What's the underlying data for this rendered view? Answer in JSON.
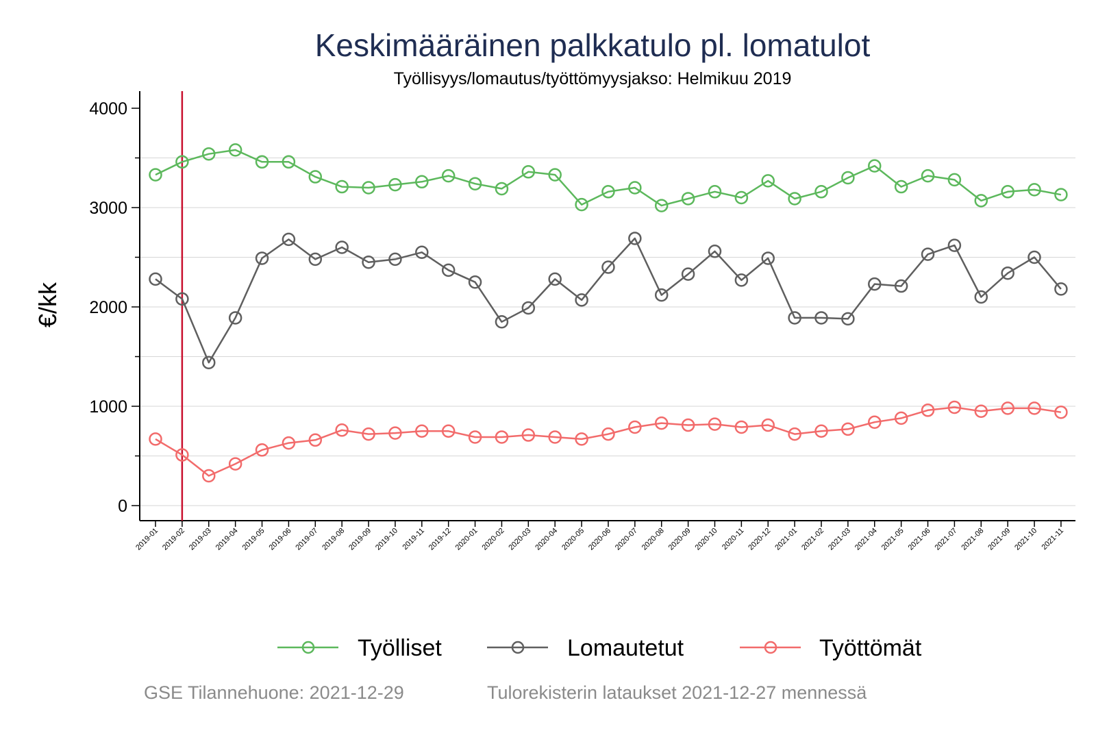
{
  "chart_data": {
    "type": "line",
    "title": "Keskimääräinen palkkatulo pl. lomatulot",
    "subtitle": "Työllisyys/lomautus/työttömyysjakso: Helmikuu 2019",
    "xlabel": "",
    "ylabel": "€/kk",
    "ylim": [
      -150,
      4150
    ],
    "yticks": [
      0,
      1000,
      2000,
      3000,
      4000
    ],
    "grid": true,
    "legend_position": "bottom",
    "reference_line": {
      "x": "2019-02",
      "color": "#c8102e"
    },
    "categories": [
      "2019-01",
      "2019-02",
      "2019-03",
      "2019-04",
      "2019-05",
      "2019-06",
      "2019-07",
      "2019-08",
      "2019-09",
      "2019-10",
      "2019-11",
      "2019-12",
      "2020-01",
      "2020-02",
      "2020-03",
      "2020-04",
      "2020-05",
      "2020-06",
      "2020-07",
      "2020-08",
      "2020-09",
      "2020-10",
      "2020-11",
      "2020-12",
      "2021-01",
      "2021-02",
      "2021-03",
      "2021-04",
      "2021-05",
      "2021-06",
      "2021-07",
      "2021-08",
      "2021-09",
      "2021-10",
      "2021-11"
    ],
    "series": [
      {
        "name": "Työlliset",
        "color": "#5cb85c",
        "values": [
          3330,
          3460,
          3540,
          3580,
          3460,
          3460,
          3310,
          3210,
          3200,
          3230,
          3260,
          3320,
          3240,
          3190,
          3360,
          3330,
          3030,
          3160,
          3200,
          3020,
          3090,
          3160,
          3100,
          3270,
          3090,
          3160,
          3300,
          3420,
          3210,
          3320,
          3280,
          3070,
          3160,
          3180,
          3130
        ]
      },
      {
        "name": "Lomautetut",
        "color": "#5f5f5f",
        "values": [
          2280,
          2080,
          1440,
          1890,
          2490,
          2680,
          2480,
          2600,
          2450,
          2480,
          2550,
          2370,
          2250,
          1850,
          1990,
          2280,
          2070,
          2400,
          2690,
          2120,
          2330,
          2560,
          2270,
          2490,
          1890,
          1890,
          1880,
          2230,
          2210,
          2530,
          2620,
          2100,
          2340,
          2500,
          2180
        ]
      },
      {
        "name": "Työttömät",
        "color": "#f26b6b",
        "values": [
          670,
          510,
          300,
          420,
          560,
          630,
          660,
          760,
          720,
          730,
          750,
          750,
          690,
          690,
          710,
          690,
          670,
          720,
          790,
          830,
          810,
          820,
          790,
          810,
          720,
          750,
          770,
          840,
          880,
          960,
          990,
          950,
          980,
          980,
          940
        ]
      }
    ]
  },
  "footer": {
    "left": "GSE Tilannehuone: 2021-12-29",
    "right": "Tulorekisterin lataukset 2021-12-27 mennessä"
  }
}
